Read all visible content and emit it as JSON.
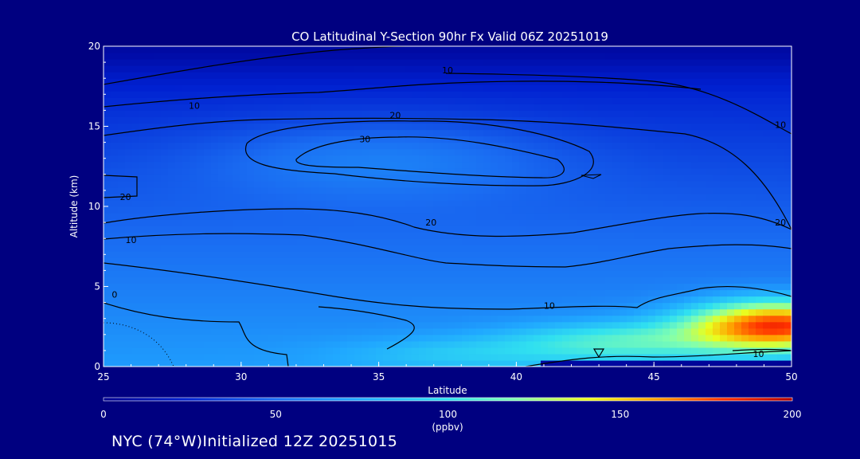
{
  "chart_data": {
    "type": "heatmap",
    "title": "CO Latitudinal Y-Section 90hr  Fx Valid 06Z 20251019",
    "xlabel": "Latitude",
    "ylabel": "Altitude (km)",
    "xlim": [
      25,
      50
    ],
    "ylim": [
      0,
      20
    ],
    "xticks": [
      "25",
      "30",
      "35",
      "40",
      "45",
      "50"
    ],
    "yticks": [
      "0",
      "5",
      "10",
      "15",
      "20"
    ],
    "colorbar": {
      "range": [
        0,
        200
      ],
      "ticks": [
        "0",
        "50",
        "100",
        "150",
        "200"
      ],
      "units": "(ppbv)",
      "colors": [
        "#000090",
        "#0020d0",
        "#1a6cf2",
        "#20a8ff",
        "#30e0f0",
        "#80ffb0",
        "#e8ff20",
        "#ffa000",
        "#ff3000",
        "#b00000"
      ]
    },
    "contour_levels": [
      10,
      20,
      30
    ],
    "contour_labels": [
      {
        "text": "10",
        "lat": 37.5,
        "alt": 18.5
      },
      {
        "text": "10",
        "lat": 28.3,
        "alt": 16.3
      },
      {
        "text": "20",
        "lat": 35.6,
        "alt": 15.7
      },
      {
        "text": "30",
        "lat": 34.5,
        "alt": 14.2
      },
      {
        "text": "20",
        "lat": 25.8,
        "alt": 10.6
      },
      {
        "text": "20",
        "lat": 36.9,
        "alt": 9.0
      },
      {
        "text": "10",
        "lat": 26.0,
        "alt": 7.9
      },
      {
        "text": "0",
        "lat": 25.4,
        "alt": 4.5
      },
      {
        "text": "10",
        "lat": 41.2,
        "alt": 3.8
      },
      {
        "text": "10",
        "lat": 49.6,
        "alt": 15.1
      },
      {
        "text": "20",
        "lat": 49.6,
        "alt": 9.0
      },
      {
        "text": "10",
        "lat": 48.8,
        "alt": 0.8
      }
    ],
    "field_description_points": [
      {
        "lat": 25,
        "alt": 1,
        "value": 62
      },
      {
        "lat": 35,
        "alt": 1,
        "value": 78
      },
      {
        "lat": 42,
        "alt": 1,
        "value": 105
      },
      {
        "lat": 48.5,
        "alt": 2.5,
        "value": 185
      },
      {
        "lat": 35,
        "alt": 13,
        "value": 42
      },
      {
        "lat": 35,
        "alt": 19,
        "value": 8
      }
    ]
  },
  "footer": {
    "text": "NYC (74°W)Initialized 12Z 20251015"
  }
}
